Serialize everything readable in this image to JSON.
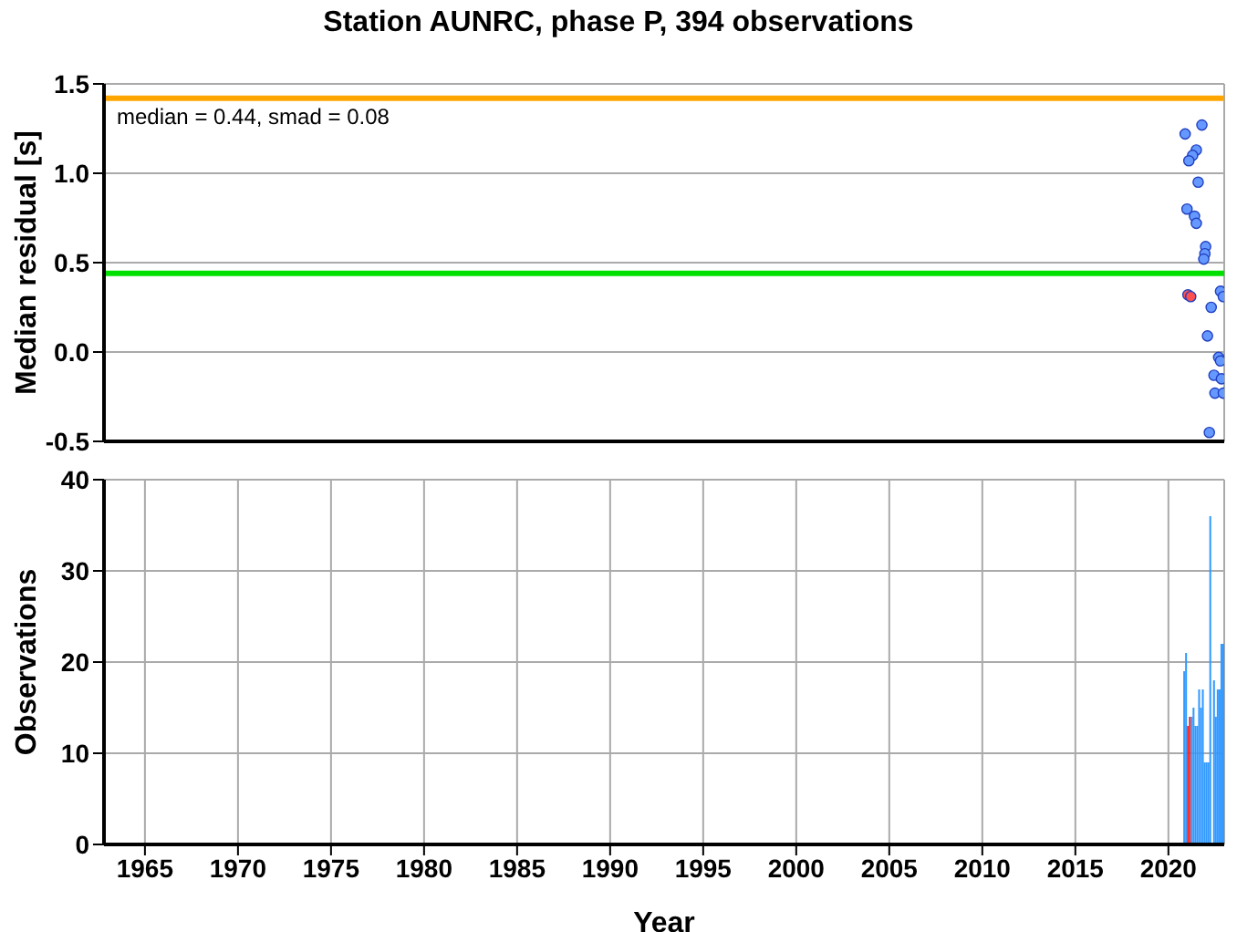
{
  "chart_data": [
    {
      "type": "scatter",
      "title": "Station AUNRC, phase P, 394 observations",
      "ylabel": "Median residual [s]",
      "tick_labels": "y",
      "grid": true,
      "marker": "circle",
      "xlim": [
        1962.8,
        2023.0
      ],
      "xticks": [
        1965,
        1970,
        1975,
        1980,
        1985,
        1990,
        1995,
        2000,
        2005,
        2010,
        2015,
        2020
      ],
      "ylim": [
        -0.5,
        1.5
      ],
      "yticks": [
        {
          "value": -0.5,
          "label": "-0.5"
        },
        {
          "value": 0,
          "label": "0.0"
        },
        {
          "value": 0.5,
          "label": "0.5"
        },
        {
          "value": 1,
          "label": "1.0"
        },
        {
          "value": 1.5,
          "label": "1.5"
        }
      ],
      "annotations": [
        "median = 0.44, smad = 0.08"
      ],
      "ref_lines": [
        {
          "axis": "y",
          "value": 1.42,
          "color": "#ffa500"
        },
        {
          "axis": "y",
          "value": 0.44,
          "color": "#00e000"
        }
      ],
      "series": [
        {
          "color": "#6699ff",
          "x": [
            2021.8,
            2020.9,
            2021.5,
            2021.3,
            2021.1,
            2021.6,
            2021.0,
            2021.4,
            2021.5,
            2022.0,
            2021.96,
            2021.9,
            2022.8,
            2022.95,
            2022.3,
            2022.1,
            2022.7,
            2022.8,
            2022.45,
            2022.85,
            2022.5,
            2022.95,
            2022.2
          ],
          "values": [
            1.27,
            1.22,
            1.13,
            1.1,
            1.07,
            0.95,
            0.8,
            0.76,
            0.72,
            0.59,
            0.55,
            0.52,
            0.34,
            0.31,
            0.25,
            0.09,
            -0.03,
            -0.05,
            -0.13,
            -0.15,
            -0.23,
            -0.23,
            -0.45
          ]
        },
        {
          "color": "#ff5050",
          "x": [
            2021.05,
            2021.2
          ],
          "values": [
            0.32,
            0.31
          ]
        }
      ]
    },
    {
      "type": "histogram",
      "xlabel": "Year",
      "ylabel": "Observations",
      "grid": true,
      "xlim": [
        1962.8,
        2023.0
      ],
      "xticks": [
        1965,
        1970,
        1975,
        1980,
        1985,
        1990,
        1995,
        2000,
        2005,
        2010,
        2015,
        2020
      ],
      "ylim": [
        0,
        40
      ],
      "yticks": [
        0,
        10,
        20,
        30,
        40
      ],
      "bins": [
        2020.8,
        2020.9,
        2021.0,
        2021.1,
        2021.2,
        2021.3,
        2021.4,
        2021.5,
        2021.6,
        2021.7,
        2021.8,
        2021.9,
        2022.0,
        2022.1,
        2022.2,
        2022.3,
        2022.4,
        2022.5,
        2022.6,
        2022.7,
        2022.8,
        2022.9,
        2023.0
      ],
      "values": [
        19,
        21,
        13,
        14,
        14,
        15,
        13,
        13,
        17,
        15,
        17,
        9,
        9,
        9,
        36,
        0,
        18,
        14,
        17,
        17,
        22,
        22
      ],
      "colors": [
        "#3399ff",
        "#3399ff",
        "#ff2020",
        "#ff2020",
        "#3399ff",
        "#3399ff",
        "#3399ff",
        "#3399ff",
        "#3399ff",
        "#3399ff",
        "#3399ff",
        "#3399ff",
        "#3399ff",
        "#3399ff",
        "#3399ff",
        "#3399ff",
        "#3399ff",
        "#3399ff",
        "#3399ff",
        "#3399ff",
        "#3399ff",
        "#3399ff"
      ]
    }
  ]
}
